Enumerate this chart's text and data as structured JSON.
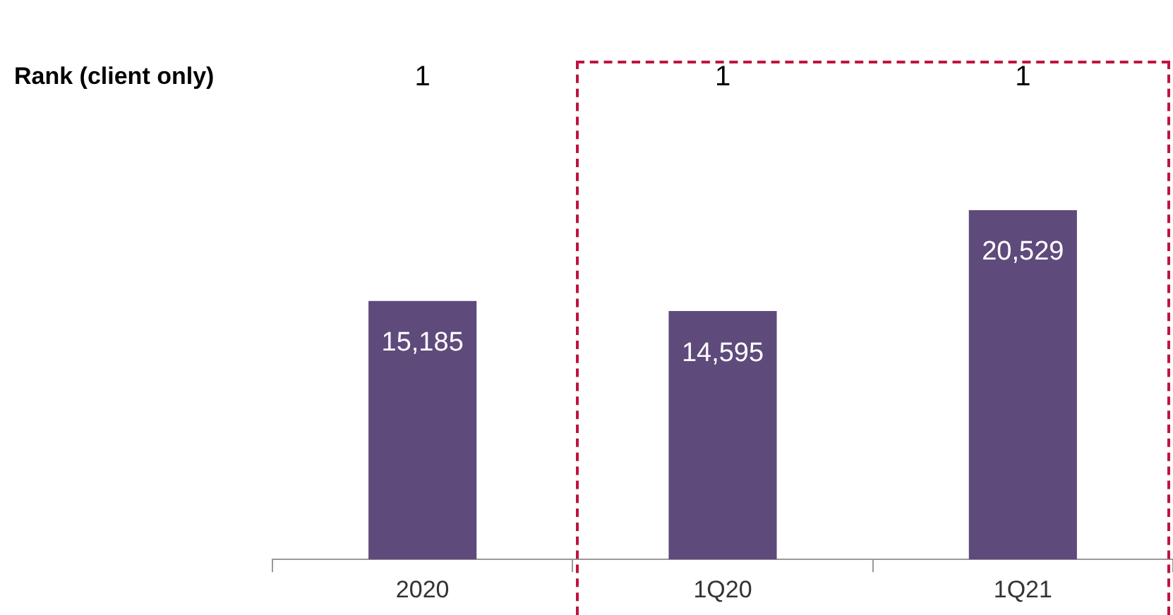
{
  "chart_data": {
    "type": "bar",
    "categories": [
      "2020",
      "1Q20",
      "1Q21"
    ],
    "values": [
      15185,
      14595,
      20529
    ],
    "value_labels": [
      "15,185",
      "14,595",
      "20,529"
    ],
    "color": "#5e4a7b",
    "grid": false,
    "legend": false,
    "tick_labels": "x",
    "annotations": [
      "Rank (client only)",
      "1",
      "1",
      "1"
    ]
  }
}
